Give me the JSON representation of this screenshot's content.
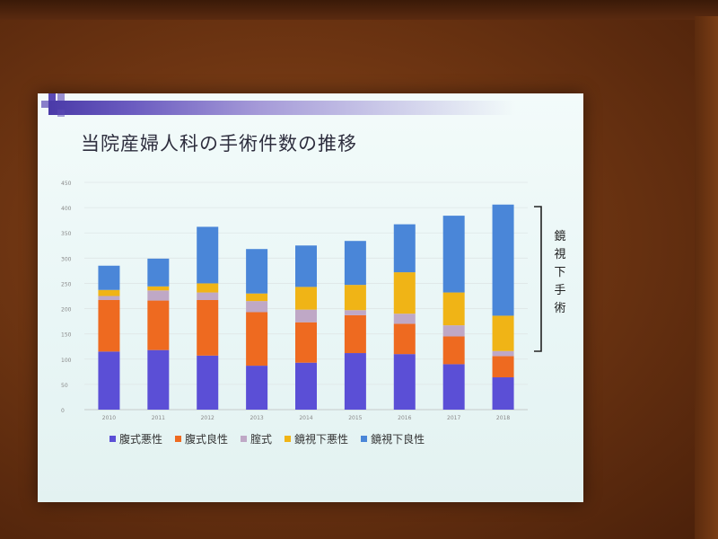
{
  "slide": {
    "title": "当院産婦人科の手術件数の推移",
    "bracket_text": [
      "鏡",
      "視",
      "下",
      "手",
      "術"
    ]
  },
  "colors": {
    "腹式悪性": "#5b4fd6",
    "腹式良性": "#ee6a20",
    "腟式": "#bfa8c6",
    "鏡視下悪性": "#f0b416",
    "鏡視下良性": "#4a86d8"
  },
  "chart_data": {
    "type": "bar",
    "stacked": true,
    "categories": [
      "2010",
      "2011",
      "2012",
      "2013",
      "2014",
      "2015",
      "2016",
      "2017",
      "2018"
    ],
    "series": [
      {
        "name": "腹式悪性",
        "values": [
          115,
          118,
          107,
          87,
          93,
          112,
          110,
          90,
          64
        ]
      },
      {
        "name": "腹式良性",
        "values": [
          102,
          98,
          110,
          106,
          80,
          75,
          60,
          55,
          42
        ]
      },
      {
        "name": "腟式",
        "values": [
          8,
          20,
          15,
          22,
          25,
          10,
          20,
          22,
          10
        ]
      },
      {
        "name": "鏡視下悪性",
        "values": [
          12,
          8,
          18,
          15,
          45,
          50,
          82,
          65,
          70
        ]
      },
      {
        "name": "鏡視下良性",
        "values": [
          48,
          55,
          112,
          88,
          82,
          87,
          95,
          152,
          220
        ]
      }
    ],
    "ylim": [
      0,
      450
    ],
    "yticks": [
      0,
      50,
      100,
      150,
      200,
      250,
      300,
      350,
      400,
      450
    ],
    "grid": true,
    "legend_position": "bottom",
    "annotation": "鏡視下手術"
  }
}
